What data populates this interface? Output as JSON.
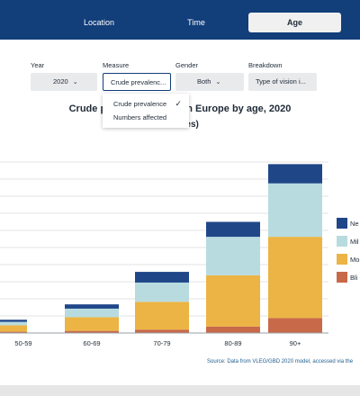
{
  "tabs": [
    {
      "label": "Location",
      "active": false
    },
    {
      "label": "Time",
      "active": false
    },
    {
      "label": "Age",
      "active": true
    }
  ],
  "filters": [
    {
      "label": "Year",
      "value": "2020"
    },
    {
      "label": "Measure",
      "value": "Crude prevalenc..."
    },
    {
      "label": "Gender",
      "value": "Both"
    },
    {
      "label": "Breakdown",
      "value": "Type of vision i..."
    }
  ],
  "measure_dropdown": {
    "options": [
      "Crude prevalence",
      "Numbers affected"
    ],
    "selected": "Crude prevalence"
  },
  "source_text": "Source: Data from VLEG/GBD 2020 model, accessed via the",
  "chart_data": {
    "type": "bar",
    "stacked": true,
    "title": "Crude prevalen… Western Europe by age, 2020",
    "subtitle": "…males)",
    "categories": [
      "50-59",
      "60-69",
      "70-79",
      "80-89",
      "90+"
    ],
    "series": [
      {
        "name": "Bli…",
        "color": "#c8694a",
        "values": [
          0.3,
          0.5,
          0.8,
          1.5,
          3.5
        ]
      },
      {
        "name": "Mo…",
        "color": "#ecb444",
        "values": [
          1.5,
          3.2,
          6.5,
          12.0,
          19.0
        ]
      },
      {
        "name": "Mil…",
        "color": "#b8dbe0",
        "values": [
          0.8,
          2.0,
          4.5,
          9.0,
          12.5
        ]
      },
      {
        "name": "Ne…",
        "color": "#1f4788",
        "values": [
          0.5,
          1.0,
          2.5,
          3.5,
          4.5
        ]
      }
    ],
    "ylim": [
      0,
      40
    ],
    "grid": true,
    "legend": "right"
  }
}
